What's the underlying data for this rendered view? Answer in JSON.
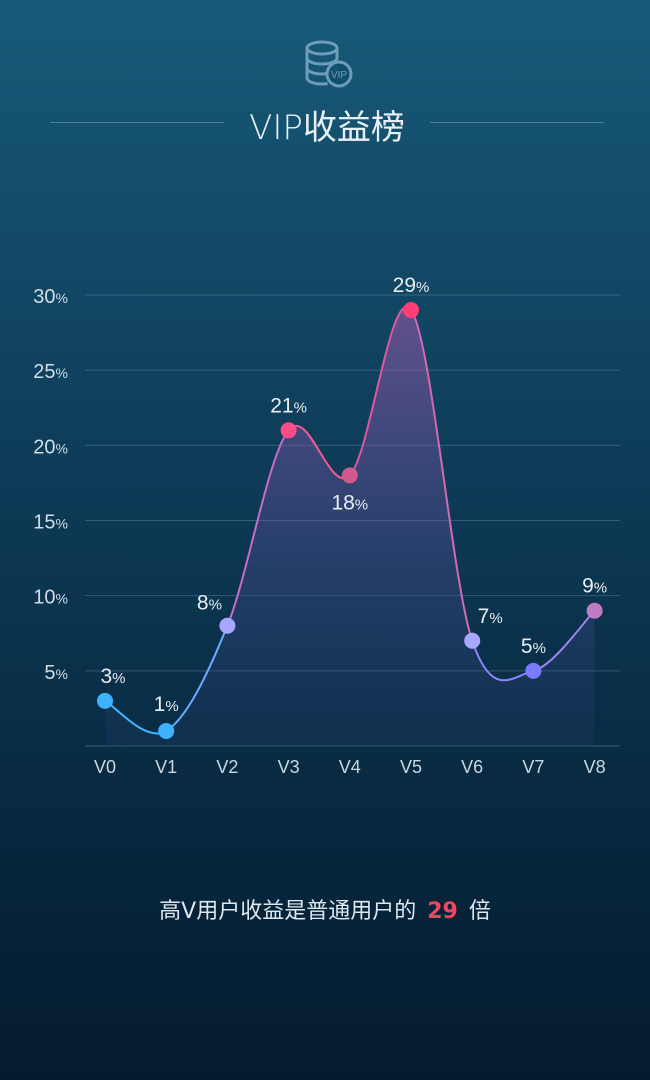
{
  "header": {
    "icon": "vip-database-icon",
    "icon_text": "VIP",
    "title": "VIP收益榜"
  },
  "chart_data": {
    "type": "line",
    "title": "VIP收益榜",
    "xlabel": "",
    "ylabel": "",
    "categories": [
      "V0",
      "V1",
      "V2",
      "V3",
      "V4",
      "V5",
      "V6",
      "V7",
      "V8"
    ],
    "series": [
      {
        "values": [
          3,
          1,
          8,
          21,
          18,
          29,
          7,
          5,
          9
        ]
      }
    ],
    "value_labels": [
      "3",
      "1",
      "8",
      "21",
      "18",
      "29",
      "7",
      "5",
      "9"
    ],
    "label_unit": "%",
    "point_colors": [
      "#3db3ff",
      "#3db3ff",
      "#a9a6ff",
      "#ff4d8a",
      "#d05a8d",
      "#ff3d78",
      "#a9a6ff",
      "#7b7bff",
      "#c07bc2"
    ],
    "line_colors": [
      "#45b6ff",
      "#8ea6ff",
      "#d85aa5",
      "#ff4d8a",
      "#c06ad8",
      "#8b84ff"
    ],
    "ylim": [
      0,
      30
    ],
    "yticks": [
      {
        "value": 5,
        "label": "5",
        "unit": "%"
      },
      {
        "value": 10,
        "label": "10",
        "unit": "%"
      },
      {
        "value": 15,
        "label": "15",
        "unit": "%"
      },
      {
        "value": 20,
        "label": "20",
        "unit": "%"
      },
      {
        "value": 25,
        "label": "25",
        "unit": "%"
      },
      {
        "value": 30,
        "label": "30",
        "unit": "%"
      }
    ],
    "grid": true,
    "curve": "smooth",
    "area_fill": true
  },
  "footer": {
    "prefix": "高V用户收益是普通用户的",
    "number": "29",
    "suffix": "倍"
  }
}
